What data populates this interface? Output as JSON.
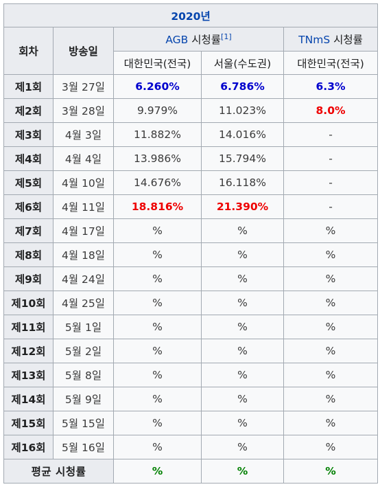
{
  "table": {
    "year": "2020년",
    "headers": {
      "episode": "회차",
      "airdate": "방송일",
      "agb_name": "AGB",
      "agb_suffix": "시청률",
      "agb_ref": "[1]",
      "tnms_name": "TNmS",
      "tnms_suffix": "시청률",
      "sub_nationwide": "대한민국(전국)",
      "sub_seoul": "서울(수도권)",
      "sub_tnms_nationwide": "대한민국(전국)"
    },
    "rows": [
      {
        "ep": "제1회",
        "date": "3월 27일",
        "agb_nat": "6.260%",
        "agb_seoul": "6.786%",
        "tnms": "6.3%"
      },
      {
        "ep": "제2회",
        "date": "3월 28일",
        "agb_nat": "9.979%",
        "agb_seoul": "11.023%",
        "tnms": "8.0%"
      },
      {
        "ep": "제3회",
        "date": "4월 3일",
        "agb_nat": "11.882%",
        "agb_seoul": "14.016%",
        "tnms": "-"
      },
      {
        "ep": "제4회",
        "date": "4월 4일",
        "agb_nat": "13.986%",
        "agb_seoul": "15.794%",
        "tnms": "-"
      },
      {
        "ep": "제5회",
        "date": "4월 10일",
        "agb_nat": "14.676%",
        "agb_seoul": "16.118%",
        "tnms": "-"
      },
      {
        "ep": "제6회",
        "date": "4월 11일",
        "agb_nat": "18.816%",
        "agb_seoul": "21.390%",
        "tnms": "-"
      },
      {
        "ep": "제7회",
        "date": "4월 17일",
        "agb_nat": "%",
        "agb_seoul": "%",
        "tnms": "%"
      },
      {
        "ep": "제8회",
        "date": "4월 18일",
        "agb_nat": "%",
        "agb_seoul": "%",
        "tnms": "%"
      },
      {
        "ep": "제9회",
        "date": "4월 24일",
        "agb_nat": "%",
        "agb_seoul": "%",
        "tnms": "%"
      },
      {
        "ep": "제10회",
        "date": "4월 25일",
        "agb_nat": "%",
        "agb_seoul": "%",
        "tnms": "%"
      },
      {
        "ep": "제11회",
        "date": "5월 1일",
        "agb_nat": "%",
        "agb_seoul": "%",
        "tnms": "%"
      },
      {
        "ep": "제12회",
        "date": "5월 2일",
        "agb_nat": "%",
        "agb_seoul": "%",
        "tnms": "%"
      },
      {
        "ep": "제13회",
        "date": "5월 8일",
        "agb_nat": "%",
        "agb_seoul": "%",
        "tnms": "%"
      },
      {
        "ep": "제14회",
        "date": "5월 9일",
        "agb_nat": "%",
        "agb_seoul": "%",
        "tnms": "%"
      },
      {
        "ep": "제15회",
        "date": "5월 15일",
        "agb_nat": "%",
        "agb_seoul": "%",
        "tnms": "%"
      },
      {
        "ep": "제16회",
        "date": "5월 16일",
        "agb_nat": "%",
        "agb_seoul": "%",
        "tnms": "%"
      }
    ],
    "average": {
      "label": "평균 시청률",
      "agb_nat": "%",
      "agb_seoul": "%",
      "tnms": "%"
    },
    "colors": {
      "lowest": "#0000cd",
      "highest": "#ee0000",
      "average": "#008000",
      "link": "#0645ad"
    }
  }
}
